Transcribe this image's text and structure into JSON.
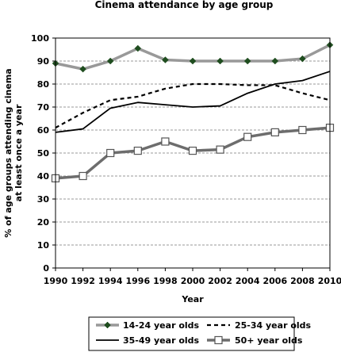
{
  "chart_data": {
    "type": "line",
    "title": "Cinema attendance by age group",
    "xlabel": "Year",
    "ylabel": "% of age groups attending cinema at least once a year",
    "ylabel_lines": [
      "% of age groups attending cinema",
      "at least once a year"
    ],
    "x": [
      1990,
      1992,
      1994,
      1996,
      1998,
      2000,
      2002,
      2004,
      2006,
      2008,
      2010
    ],
    "xlim": [
      1990,
      2010
    ],
    "ylim": [
      0,
      100
    ],
    "yticks": [
      0,
      10,
      20,
      30,
      40,
      50,
      60,
      70,
      80,
      90,
      100
    ],
    "xticks": [
      1990,
      1992,
      1994,
      1996,
      1998,
      2000,
      2002,
      2004,
      2006,
      2008,
      2010
    ],
    "grid": "horizontal dashed",
    "legend_position": "bottom",
    "series": [
      {
        "name": "14-24 year olds",
        "values": [
          89,
          86.5,
          90,
          95.5,
          90.5,
          90,
          90,
          90,
          90,
          91,
          97
        ],
        "color": "#999999",
        "marker": "diamond",
        "marker_color": "#1f4d1f",
        "style": "solid-thick"
      },
      {
        "name": "25-34 year olds",
        "values": [
          61,
          67.5,
          73,
          74.5,
          78,
          80,
          80,
          79.5,
          79.5,
          76,
          73
        ],
        "color": "#000000",
        "style": "dashed"
      },
      {
        "name": "35-49 year olds",
        "values": [
          59,
          60.5,
          69.5,
          72,
          71,
          70,
          70.5,
          76,
          80,
          81.5,
          85.5
        ],
        "color": "#000000",
        "style": "solid"
      },
      {
        "name": "50+ year olds",
        "values": [
          39,
          40,
          50,
          51,
          55,
          51,
          51.5,
          57,
          59,
          60,
          61
        ],
        "color": "#6d6d6d",
        "marker": "square",
        "style": "solid-thick"
      }
    ]
  }
}
